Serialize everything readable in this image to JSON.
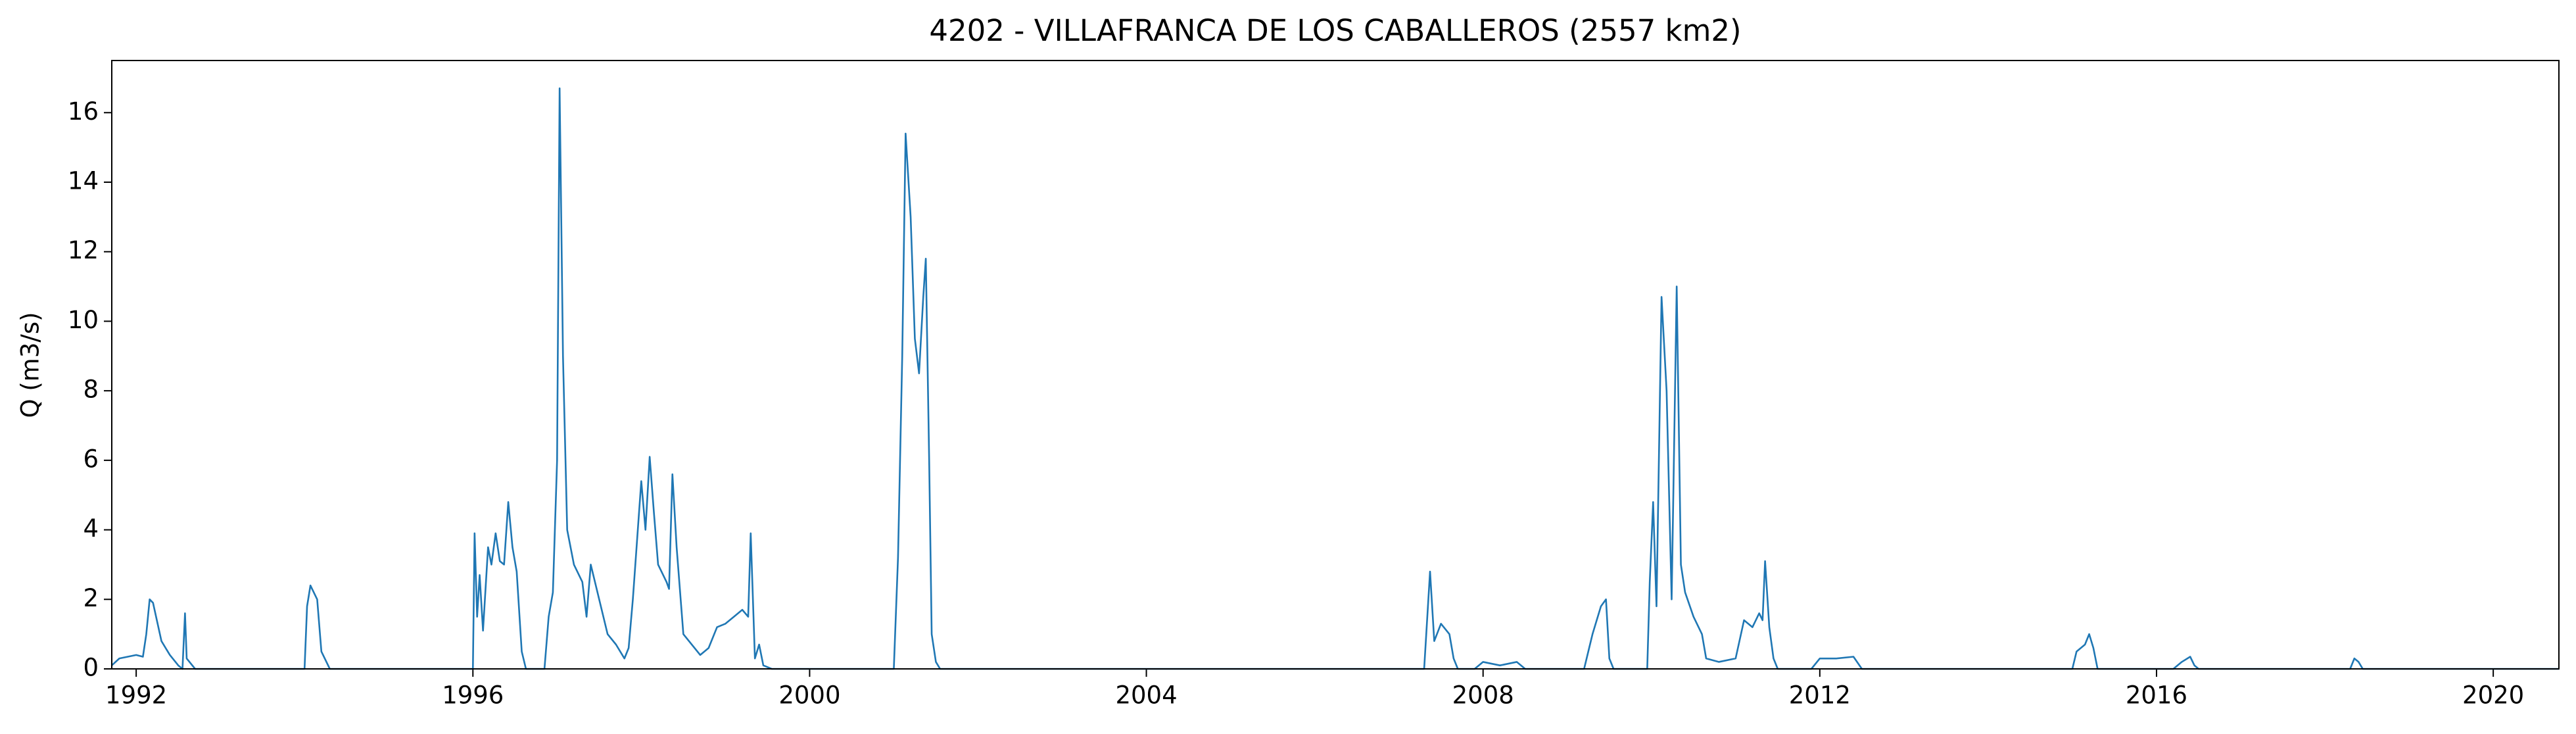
{
  "chart_data": {
    "type": "line",
    "title": "4202 - VILLAFRANCA DE LOS CABALLEROS (2557 km2)",
    "ylabel": "Q (m3/s)",
    "xlim": [
      1991.71,
      2020.78
    ],
    "xticks": [
      1992,
      1996,
      2000,
      2004,
      2008,
      2012,
      2016,
      2020
    ],
    "ylim": [
      0,
      17.5
    ],
    "yticks": [
      0,
      2,
      4,
      6,
      8,
      10,
      12,
      14,
      16
    ],
    "grid": false,
    "series": [
      {
        "color": "#1f77b4",
        "x": [
          1991.71,
          1991.8,
          1992.0,
          1992.08,
          1992.12,
          1992.16,
          1992.2,
          1992.3,
          1992.4,
          1992.5,
          1992.55,
          1992.58,
          1992.6,
          1992.7,
          1994.0,
          1994.03,
          1994.07,
          1994.15,
          1994.2,
          1994.3,
          1996.0,
          1996.02,
          1996.05,
          1996.08,
          1996.12,
          1996.18,
          1996.22,
          1996.27,
          1996.32,
          1996.37,
          1996.42,
          1996.47,
          1996.52,
          1996.58,
          1996.63,
          1996.85,
          1996.9,
          1996.95,
          1997.0,
          1997.03,
          1997.07,
          1997.12,
          1997.2,
          1997.3,
          1997.35,
          1997.4,
          1997.5,
          1997.6,
          1997.7,
          1997.8,
          1997.85,
          1997.9,
          1998.0,
          1998.05,
          1998.1,
          1998.15,
          1998.2,
          1998.3,
          1998.33,
          1998.37,
          1998.42,
          1998.5,
          1998.7,
          1998.8,
          1998.9,
          1999.0,
          1999.1,
          1999.2,
          1999.27,
          1999.3,
          1999.35,
          1999.4,
          1999.45,
          1999.55,
          2001.0,
          2001.05,
          2001.1,
          2001.14,
          2001.2,
          2001.25,
          2001.3,
          2001.35,
          2001.38,
          2001.42,
          2001.45,
          2001.5,
          2001.55,
          2007.3,
          2007.37,
          2007.42,
          2007.5,
          2007.6,
          2007.65,
          2007.7,
          2007.9,
          2008.0,
          2008.2,
          2008.4,
          2008.5,
          2009.2,
          2009.3,
          2009.4,
          2009.46,
          2009.5,
          2009.55,
          2009.95,
          2009.98,
          2010.02,
          2010.06,
          2010.12,
          2010.18,
          2010.24,
          2010.3,
          2010.35,
          2010.4,
          2010.5,
          2010.6,
          2010.65,
          2010.8,
          2011.0,
          2011.1,
          2011.2,
          2011.28,
          2011.32,
          2011.35,
          2011.4,
          2011.45,
          2011.5,
          2011.9,
          2012.0,
          2012.2,
          2012.4,
          2012.5,
          2015.0,
          2015.05,
          2015.15,
          2015.2,
          2015.25,
          2015.3,
          2016.2,
          2016.3,
          2016.4,
          2016.45,
          2016.5,
          2018.3,
          2018.35,
          2018.4,
          2018.45,
          2020.78
        ],
        "values": [
          0.1,
          0.3,
          0.4,
          0.35,
          1.0,
          2.0,
          1.9,
          0.8,
          0.4,
          0.1,
          0,
          1.6,
          0.3,
          0,
          0,
          1.8,
          2.4,
          2.0,
          0.5,
          0,
          0,
          3.9,
          1.5,
          2.7,
          1.1,
          3.5,
          3.0,
          3.9,
          3.1,
          3.0,
          4.8,
          3.5,
          2.8,
          0.5,
          0,
          0,
          1.5,
          2.2,
          6,
          16.7,
          9,
          4.0,
          3.0,
          2.5,
          1.5,
          3.0,
          2.0,
          1.0,
          0.7,
          0.3,
          0.6,
          2.0,
          5.4,
          4.0,
          6.1,
          4.5,
          3.0,
          2.5,
          2.3,
          5.6,
          3.5,
          1.0,
          0.4,
          0.6,
          1.2,
          1.3,
          1.5,
          1.7,
          1.5,
          3.9,
          0.3,
          0.7,
          0.1,
          0,
          0,
          3.2,
          9,
          15.4,
          13.0,
          9.5,
          8.5,
          10.7,
          11.8,
          6,
          1.0,
          0.2,
          0,
          0,
          2.8,
          0.8,
          1.3,
          1.0,
          0.3,
          0,
          0,
          0.2,
          0.1,
          0.2,
          0,
          0,
          1.0,
          1.8,
          2.0,
          0.3,
          0,
          0,
          2.5,
          4.8,
          1.8,
          10.7,
          8,
          2.0,
          11.0,
          3.0,
          2.2,
          1.5,
          1.0,
          0.3,
          0.2,
          0.3,
          1.4,
          1.2,
          1.6,
          1.4,
          3.1,
          1.2,
          0.3,
          0,
          0,
          0.3,
          0.3,
          0.35,
          0,
          0,
          0.5,
          0.7,
          1.0,
          0.6,
          0,
          0,
          0.2,
          0.35,
          0.1,
          0,
          0,
          0.3,
          0.2,
          0,
          0
        ]
      }
    ]
  }
}
